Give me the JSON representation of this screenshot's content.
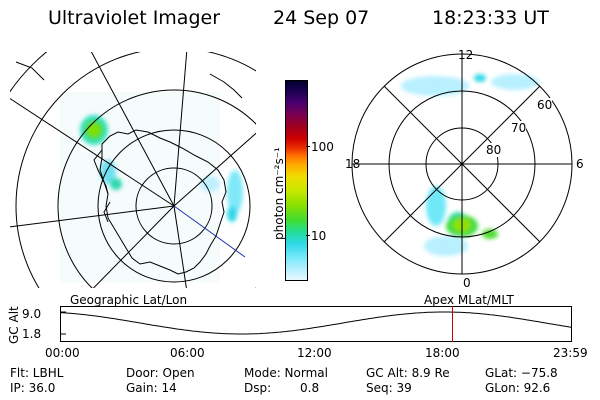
{
  "header": {
    "instrument": "Ultraviolet Imager",
    "date": "24 Sep 07",
    "time": "18:23:33 UT"
  },
  "geo_panel": {
    "label": "Geographic Lat/Lon"
  },
  "mag_panel": {
    "label": "Apex MLat/MLT",
    "mlt_labels": {
      "top": "12",
      "left": "18",
      "right": "6",
      "bottom": "0"
    },
    "lat_labels": [
      "60",
      "70",
      "80"
    ]
  },
  "colorbar": {
    "unit_label": "photon cm⁻²s⁻¹",
    "tick_labels": [
      "100",
      "10"
    ],
    "colors": [
      "#000030",
      "#1a0050",
      "#4a0070",
      "#7a0050",
      "#a00020",
      "#cc0000",
      "#ee3300",
      "#ff7700",
      "#ffaa00",
      "#f0dd00",
      "#c8e800",
      "#8ee000",
      "#40dd30",
      "#22dd99",
      "#30d8e8",
      "#70e8f8",
      "#b0f0ff",
      "#e8f8ff"
    ]
  },
  "timeline": {
    "ylabel": "GC Alt",
    "y_ticks": [
      "9.0",
      "1.8"
    ],
    "x_ticks": [
      "00:00",
      "06:00",
      "12:00",
      "18:00",
      "23:59"
    ],
    "marker_time": "18:23",
    "marker_color": "#cc0000"
  },
  "footer": {
    "filter": "Flt: LBHL",
    "door": "Door: Open",
    "mode": "Mode: Normal",
    "gc_alt": "GC Alt: 8.9 Re",
    "glat": "GLat: −75.8",
    "ip": "IP: 36.0",
    "gain": "Gain: 14",
    "dsp": "Dsp:",
    "dsp_value": "0.8",
    "seq": "Seq: 39",
    "glon": "GLon:  92.6"
  }
}
